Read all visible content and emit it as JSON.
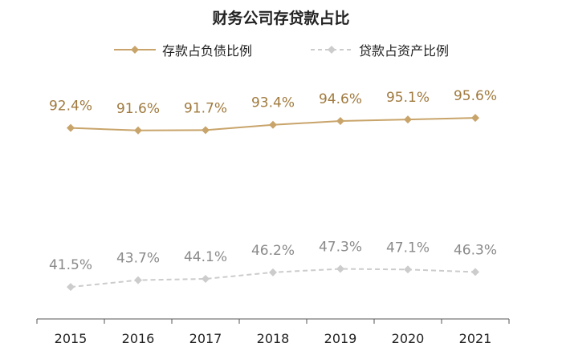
{
  "chart_data": {
    "type": "line",
    "title": "财务公司存贷款占比",
    "categories": [
      "2015",
      "2016",
      "2017",
      "2018",
      "2019",
      "2020",
      "2021"
    ],
    "series": [
      {
        "name": "存款占负债比例",
        "values": [
          92.4,
          91.6,
          91.7,
          93.4,
          94.6,
          95.1,
          95.6
        ],
        "labels": [
          "92.4%",
          "91.6%",
          "91.7%",
          "93.4%",
          "94.6%",
          "95.1%",
          "95.6%"
        ],
        "color": "#C8A46A",
        "label_color": "#A07A3E",
        "style": "solid",
        "marker": "diamond"
      },
      {
        "name": "贷款占资产比例",
        "values": [
          41.5,
          43.7,
          44.1,
          46.2,
          47.3,
          47.1,
          46.3
        ],
        "labels": [
          "41.5%",
          "43.7%",
          "44.1%",
          "46.2%",
          "47.3%",
          "47.1%",
          "46.3%"
        ],
        "color": "#CCCCCC",
        "label_color": "#8A8A8A",
        "style": "dashed",
        "marker": "diamond"
      }
    ],
    "legend_position": "top",
    "grid": false,
    "y_axis_visible": false
  }
}
